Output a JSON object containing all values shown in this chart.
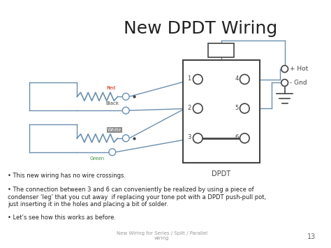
{
  "title": "New DPDT Wiring",
  "title_fontsize": 18,
  "title_color": "#222222",
  "bg_color": "#ffffff",
  "bullet_points": [
    "This new wiring has no wire crossings.",
    "The connection between 3 and 6 can conveniently be realized by using a piece of\ncondenser ‘leg’ that you cut away  if replacing your tone pot with a DPDT push-pull pot,\njust inserting it in the holes and placing a bit of solder.",
    "Let’s see how this works as before."
  ],
  "footer_text": "New Wiring for Series / Split / Parallel\nwiring",
  "page_number": "13",
  "wire_color": "#6a8faf",
  "dark_color": "#444444",
  "label_red": "Red",
  "label_black": "Black",
  "label_white": "White",
  "label_green": "Green",
  "label_dpdt": "DPDT",
  "hot_label": "+ Hot",
  "gnd_label": "- Gnd"
}
